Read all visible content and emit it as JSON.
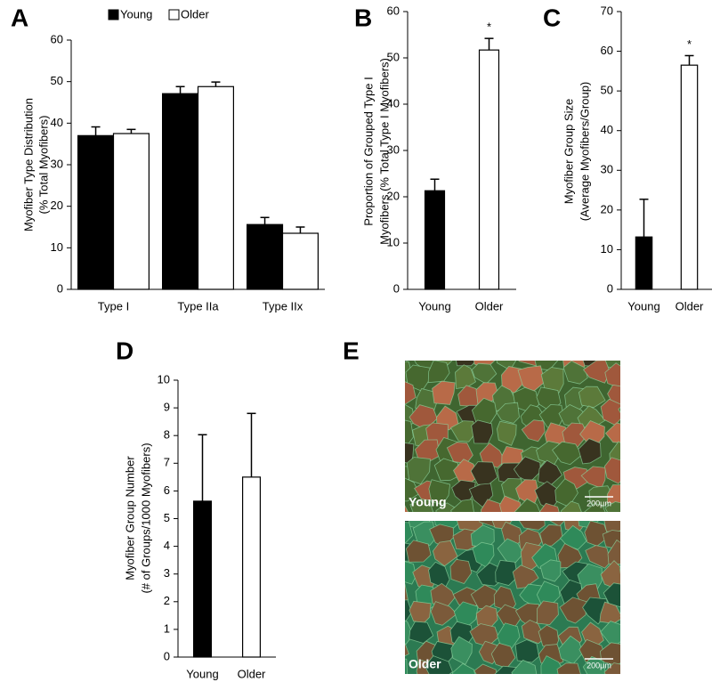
{
  "chart_data": [
    {
      "type": "bar",
      "panel": "A",
      "ylabel": [
        "Myofiber Type Distribution",
        "(% Total Myofibers)"
      ],
      "categories": [
        "Type I",
        "Type IIa",
        "Type IIx"
      ],
      "series": [
        {
          "name": "Young",
          "color": "#000000",
          "values": [
            37,
            47.1,
            15.6
          ],
          "errors": [
            2.1,
            1.7,
            1.7
          ]
        },
        {
          "name": "Older",
          "color": "#ffffff",
          "values": [
            37.5,
            48.8,
            13.5
          ],
          "errors": [
            1,
            1.1,
            1.5
          ]
        }
      ],
      "ylim": [
        0,
        60
      ],
      "yticks": [
        0,
        10,
        20,
        30,
        40,
        50,
        60
      ],
      "legend": "top"
    },
    {
      "type": "bar",
      "panel": "B",
      "ylabel": [
        "Proportion of Grouped Type I",
        "Myofibers (% Total Type I Myofibers)"
      ],
      "categories": [
        "Young",
        "Older"
      ],
      "values": [
        21.3,
        51.7
      ],
      "errors": [
        2.5,
        2.5
      ],
      "colors": [
        "#000000",
        "#ffffff"
      ],
      "annotations": [
        {
          "text": "*",
          "category": 1
        }
      ],
      "ylim": [
        0,
        60
      ],
      "yticks": [
        0,
        10,
        20,
        30,
        40,
        50,
        60
      ]
    },
    {
      "type": "bar",
      "panel": "C",
      "ylabel": [
        "Myofiber Group Size",
        "(Average Myofibers/Group)"
      ],
      "categories": [
        "Young",
        "Older"
      ],
      "values": [
        13.2,
        56.5
      ],
      "errors": [
        9.5,
        2.4
      ],
      "colors": [
        "#000000",
        "#ffffff"
      ],
      "annotations": [
        {
          "text": "*",
          "category": 1
        }
      ],
      "ylim": [
        0,
        70
      ],
      "yticks": [
        0,
        10,
        20,
        30,
        40,
        50,
        60,
        70
      ]
    },
    {
      "type": "bar",
      "panel": "D",
      "ylabel": [
        "Myofiber Group Number",
        "(# of Groups/1000 Myofibers)"
      ],
      "categories": [
        "Young",
        "Older"
      ],
      "values": [
        5.63,
        6.5
      ],
      "errors": [
        2.4,
        2.3
      ],
      "colors": [
        "#000000",
        "#ffffff"
      ],
      "ylim": [
        0,
        10
      ],
      "yticks": [
        0,
        1,
        2,
        3,
        4,
        5,
        6,
        7,
        8,
        9,
        10
      ]
    }
  ],
  "panel_e": {
    "panel": "E",
    "images": [
      {
        "label": "Young",
        "scale": "200μm"
      },
      {
        "label": "Older",
        "scale": "200μm"
      }
    ]
  }
}
